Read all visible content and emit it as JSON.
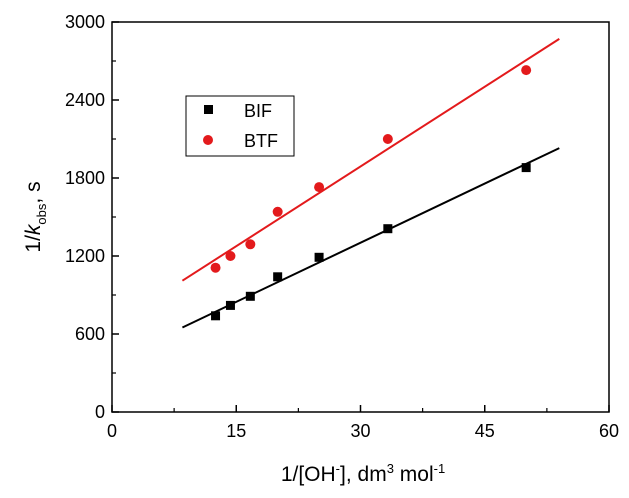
{
  "chart_data": {
    "type": "scatter",
    "xlabel": {
      "main": "1/[OH",
      "sup1": "-",
      "mid": "], dm",
      "sup2": "3",
      "tail": " mol",
      "sup3": "-1"
    },
    "ylabel": {
      "pre": "1/",
      "k": "k",
      "sub": "obs",
      "post": ", s"
    },
    "xlim": [
      0,
      60
    ],
    "ylim": [
      0,
      3000
    ],
    "xticks": [
      0,
      15,
      30,
      45,
      60
    ],
    "yticks": [
      0,
      600,
      1200,
      1800,
      2400,
      3000
    ],
    "grid": false,
    "legend_position": "upper-left",
    "series": [
      {
        "name": "BIF",
        "marker": "square",
        "color": "#000000",
        "x": [
          12.5,
          14.3,
          16.7,
          20.0,
          25.0,
          33.3,
          50.0
        ],
        "y": [
          740,
          820,
          890,
          1040,
          1190,
          1410,
          1880
        ],
        "fit": {
          "x": [
            8.5,
            54
          ],
          "y": [
            650,
            2030
          ]
        }
      },
      {
        "name": "BTF",
        "marker": "circle",
        "color": "#e31a1c",
        "x": [
          12.5,
          14.3,
          16.7,
          20.0,
          25.0,
          33.3,
          50.0
        ],
        "y": [
          1110,
          1200,
          1290,
          1540,
          1730,
          2100,
          2630
        ],
        "fit": {
          "x": [
            8.5,
            54
          ],
          "y": [
            1010,
            2870
          ]
        }
      }
    ]
  }
}
